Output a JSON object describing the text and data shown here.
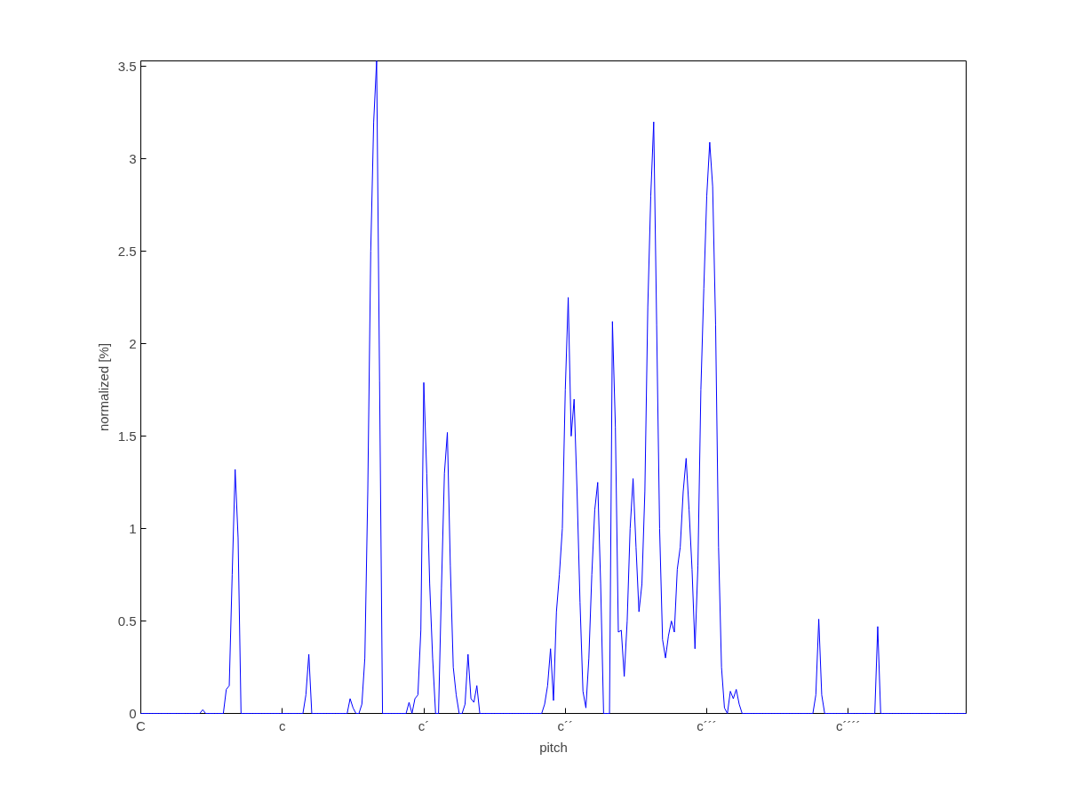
{
  "chart_data": {
    "type": "line",
    "xlabel": "pitch",
    "ylabel": "normalized [%]",
    "ylim": [
      0,
      3.53
    ],
    "yticks": [
      0,
      {
        "value": 0.5,
        "label": "0.5"
      },
      1,
      {
        "value": 1.5,
        "label": "1.5"
      },
      2,
      {
        "value": 2.5,
        "label": "2.5"
      },
      3,
      {
        "value": 3.5,
        "label": "3.5"
      }
    ],
    "grid": false,
    "marker": "none",
    "line_style": "solid",
    "categories": [
      "C",
      null,
      null,
      null,
      null,
      null,
      null,
      null,
      null,
      null,
      null,
      null,
      null,
      null,
      null,
      null,
      null,
      null,
      null,
      null,
      null,
      null,
      null,
      null,
      null,
      null,
      null,
      null,
      null,
      null,
      null,
      null,
      null,
      null,
      null,
      null,
      null,
      null,
      null,
      null,
      null,
      null,
      null,
      null,
      null,
      null,
      null,
      null,
      "c",
      null,
      null,
      null,
      null,
      null,
      null,
      null,
      null,
      null,
      null,
      null,
      null,
      null,
      null,
      null,
      null,
      null,
      null,
      null,
      null,
      null,
      null,
      null,
      null,
      null,
      null,
      null,
      null,
      null,
      null,
      null,
      null,
      null,
      null,
      null,
      null,
      null,
      null,
      null,
      null,
      null,
      null,
      null,
      null,
      null,
      null,
      null,
      "c´",
      null,
      null,
      null,
      null,
      null,
      null,
      null,
      null,
      null,
      null,
      null,
      null,
      null,
      null,
      null,
      null,
      null,
      null,
      null,
      null,
      null,
      null,
      null,
      null,
      null,
      null,
      null,
      null,
      null,
      null,
      null,
      null,
      null,
      null,
      null,
      null,
      null,
      null,
      null,
      null,
      null,
      null,
      null,
      null,
      null,
      null,
      null,
      "c´´",
      null,
      null,
      null,
      null,
      null,
      null,
      null,
      null,
      null,
      null,
      null,
      null,
      null,
      null,
      null,
      null,
      null,
      null,
      null,
      null,
      null,
      null,
      null,
      null,
      null,
      null,
      null,
      null,
      null,
      null,
      null,
      null,
      null,
      null,
      null,
      null,
      null,
      null,
      null,
      null,
      null,
      null,
      null,
      null,
      null,
      null,
      null,
      "c´´´",
      null,
      null,
      null,
      null,
      null,
      null,
      null,
      null,
      null,
      null,
      null,
      null,
      null,
      null,
      null,
      null,
      null,
      null,
      null,
      null,
      null,
      null,
      null,
      null,
      null,
      null,
      null,
      null,
      null,
      null,
      null,
      null,
      null,
      null,
      null,
      null,
      null,
      null,
      null,
      null,
      null,
      null,
      null,
      null,
      null,
      null,
      null,
      "c´´´´",
      null,
      null,
      null,
      null,
      null,
      null,
      null,
      null,
      null,
      null,
      null,
      null,
      null,
      null,
      null,
      null,
      null,
      null,
      null,
      null,
      null,
      null,
      null,
      null,
      null,
      null,
      null,
      null,
      null,
      null,
      null,
      null,
      null,
      null,
      null,
      null,
      null,
      null,
      null,
      null
    ],
    "series": [
      {
        "color": "#0000ff",
        "values": [
          0,
          0,
          0,
          0,
          0,
          0,
          0,
          0,
          0,
          0,
          0,
          0,
          0,
          0,
          0,
          0,
          0,
          0,
          0,
          0,
          0,
          0.02,
          0,
          0,
          0,
          0,
          0,
          0,
          0,
          0.13,
          0.15,
          0.75,
          1.32,
          0.95,
          0,
          0,
          0,
          0,
          0,
          0,
          0,
          0,
          0,
          0,
          0,
          0,
          0,
          0,
          0,
          0,
          0,
          0,
          0,
          0,
          0,
          0,
          0.1,
          0.32,
          0,
          0,
          0,
          0,
          0,
          0,
          0,
          0,
          0,
          0,
          0,
          0,
          0,
          0.08,
          0.03,
          0,
          0,
          0.05,
          0.3,
          1.2,
          2.5,
          3.2,
          3.53,
          1.8,
          0,
          0,
          0,
          0,
          0,
          0,
          0,
          0,
          0,
          0.06,
          0,
          0.08,
          0.1,
          0.45,
          1.79,
          1.3,
          0.7,
          0.3,
          0,
          0,
          0.68,
          1.3,
          1.52,
          0.8,
          0.25,
          0.1,
          0,
          0,
          0.05,
          0.32,
          0.08,
          0.06,
          0.15,
          0,
          0,
          0,
          0,
          0,
          0,
          0,
          0,
          0,
          0,
          0,
          0,
          0,
          0,
          0,
          0,
          0,
          0,
          0,
          0,
          0,
          0,
          0.05,
          0.15,
          0.35,
          0.07,
          0.55,
          0.75,
          1.0,
          1.75,
          2.25,
          1.5,
          1.7,
          1.2,
          0.6,
          0.12,
          0.03,
          0.3,
          0.75,
          1.1,
          1.25,
          0.7,
          0,
          0,
          0,
          2.12,
          1.55,
          0.44,
          0.45,
          0.2,
          0.5,
          1.0,
          1.27,
          0.9,
          0.55,
          0.7,
          1.2,
          2.2,
          2.8,
          3.2,
          2.1,
          1.0,
          0.4,
          0.3,
          0.42,
          0.5,
          0.44,
          0.78,
          0.9,
          1.2,
          1.38,
          1.1,
          0.78,
          0.35,
          0.8,
          1.75,
          2.3,
          2.8,
          3.09,
          2.85,
          2.1,
          0.9,
          0.25,
          0.03,
          0,
          0.12,
          0.08,
          0.13,
          0.05,
          0,
          0,
          0,
          0,
          0,
          0,
          0,
          0,
          0,
          0,
          0,
          0,
          0,
          0,
          0,
          0,
          0,
          0,
          0,
          0,
          0,
          0,
          0,
          0,
          0,
          0.1,
          0.51,
          0.1,
          0,
          0,
          0,
          0,
          0,
          0,
          0,
          0,
          0,
          0,
          0,
          0,
          0,
          0,
          0,
          0,
          0,
          0,
          0.47,
          0,
          0,
          0,
          0,
          0,
          0,
          0,
          0,
          0,
          0,
          0,
          0,
          0,
          0,
          0,
          0,
          0,
          0,
          0,
          0,
          0,
          0,
          0,
          0,
          0,
          0,
          0,
          0,
          0,
          0
        ]
      }
    ]
  }
}
